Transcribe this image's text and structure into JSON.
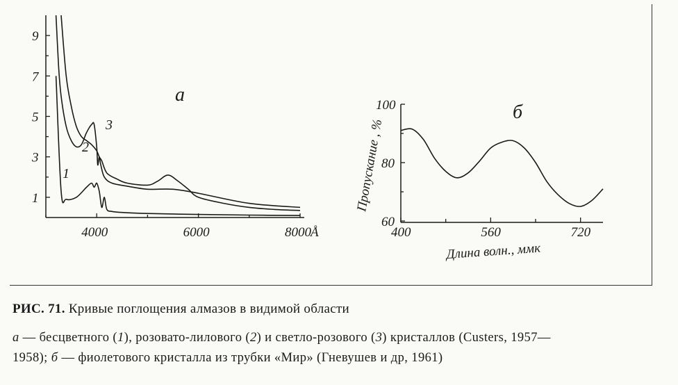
{
  "chart_data": [
    {
      "type": "line",
      "panel_label": "a",
      "xlabel_unit": "Å",
      "x_ticks": [
        "4000",
        "6000",
        "8000"
      ],
      "y_ticks": [
        "1",
        "3",
        "5",
        "7",
        "9"
      ],
      "xlim": [
        3000,
        8000
      ],
      "ylim": [
        0,
        10
      ],
      "series": [
        {
          "name": "1",
          "x": [
            3200,
            3300,
            3400,
            3600,
            3800,
            3900,
            3950,
            4000,
            4050,
            4100,
            4150,
            4200,
            4300,
            4500,
            5000,
            6000,
            7000,
            8000
          ],
          "y": [
            7.0,
            1.3,
            0.9,
            1.0,
            1.5,
            1.7,
            1.5,
            1.7,
            1.3,
            0.5,
            1.0,
            0.4,
            0.3,
            0.25,
            0.2,
            0.15,
            0.12,
            0.1
          ]
        },
        {
          "name": "2",
          "x": [
            3300,
            3400,
            3500,
            3600,
            3700,
            3800,
            3900,
            4000,
            4050,
            4100,
            4200,
            4400,
            4600,
            5000,
            5200,
            5400,
            5600,
            5800,
            6000,
            6500,
            7000,
            7500,
            8000
          ],
          "y": [
            10.0,
            7.0,
            5.5,
            4.5,
            4.0,
            3.8,
            3.6,
            3.3,
            3.0,
            2.8,
            2.2,
            1.9,
            1.7,
            1.6,
            1.8,
            2.1,
            1.8,
            1.4,
            1.0,
            0.7,
            0.5,
            0.4,
            0.35
          ]
        },
        {
          "name": "3",
          "x": [
            3200,
            3250,
            3300,
            3400,
            3500,
            3600,
            3700,
            3800,
            3900,
            3950,
            4000,
            4020,
            4050,
            4080,
            4150,
            4300,
            4600,
            5000,
            5500,
            6000,
            7000,
            8000
          ],
          "y": [
            10.0,
            7.5,
            6.0,
            4.5,
            3.8,
            3.5,
            3.6,
            4.2,
            4.6,
            4.6,
            3.5,
            2.6,
            3.0,
            2.6,
            2.0,
            1.7,
            1.55,
            1.4,
            1.4,
            1.2,
            0.7,
            0.5
          ]
        }
      ]
    },
    {
      "type": "line",
      "panel_label": "б",
      "ylabel": "Пропускание , %",
      "xlabel": "Длина волн., ммк",
      "x_ticks": [
        "400",
        "560",
        "720"
      ],
      "y_ticks": [
        "60",
        "80",
        "100"
      ],
      "xlim": [
        400,
        760
      ],
      "ylim": [
        60,
        100
      ],
      "series": [
        {
          "x": [
            400,
            420,
            440,
            460,
            480,
            500,
            520,
            540,
            560,
            580,
            600,
            620,
            640,
            660,
            680,
            700,
            720,
            740,
            760
          ],
          "y": [
            91,
            91.5,
            88,
            81.5,
            77,
            74.8,
            76.5,
            80.5,
            85,
            87,
            87.5,
            85,
            80,
            73.5,
            69,
            66,
            65,
            67,
            71
          ]
        }
      ]
    }
  ],
  "caption": {
    "title_bold": "РИС. 71.",
    "title_rest": "Кривые поглощения алмазов в видимой области",
    "line1_a": "а",
    "line1_rest": " — бесцветного (",
    "n1": "1",
    "mid1": "), розовато-лилового (",
    "n2": "2",
    "mid2": ") и светло-розового (",
    "n3": "3",
    "mid3": ") кристаллов (Custers, 1957—",
    "line2_start": "1958); ",
    "line2_b": "б",
    "line2_rest": " — фиолетового кристалла из трубки «Мир» (Гневушев и др, 1961)"
  }
}
